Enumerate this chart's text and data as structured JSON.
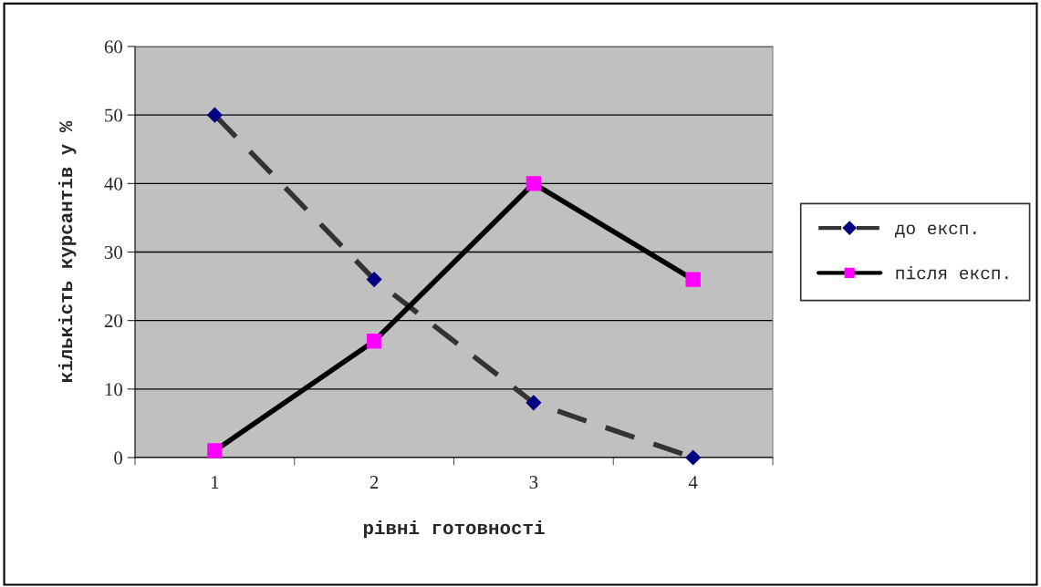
{
  "chart_data": {
    "type": "line",
    "xlabel": "рівні готовності",
    "ylabel": "кількість курсантів у %",
    "categories": [
      "1",
      "2",
      "3",
      "4"
    ],
    "series": [
      {
        "name": "до експ.",
        "color": "#000080",
        "marker": "diamond",
        "line_style": "dashed",
        "values": [
          50,
          26,
          8,
          0
        ]
      },
      {
        "name": "після експ.",
        "color": "#ff00ff",
        "marker": "square",
        "line_style": "solid",
        "values": [
          1,
          17,
          40,
          26
        ]
      }
    ],
    "ylim": [
      0,
      60
    ],
    "yticks": [
      0,
      10,
      20,
      30,
      40,
      50,
      60
    ],
    "grid": "y",
    "legend": "right"
  }
}
